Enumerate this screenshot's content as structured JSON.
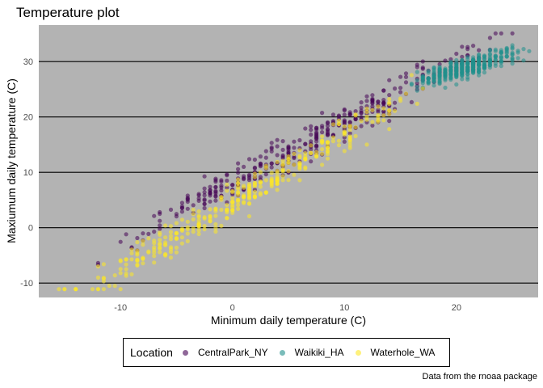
{
  "chart_data": {
    "type": "scatter",
    "title": "Temperature plot",
    "xlabel": "Minimum daily temperature (C)",
    "ylabel": "Maxiumum daily temperature (C)",
    "caption": "Data from the rnoaa package",
    "xlim": [
      -17.3,
      27.3
    ],
    "ylim": [
      -12.6,
      36.6
    ],
    "x_ticks": [
      -10,
      0,
      10,
      20
    ],
    "y_ticks": [
      -10,
      0,
      10,
      20,
      30
    ],
    "grid": "horizontal major lines only",
    "background": "#b3b3b3",
    "legend_position": "bottom",
    "legend_title": "Location",
    "series": [
      {
        "name": "CentralPark_NY",
        "color": "#440154",
        "cloud": {
          "x_range": [
            -12.5,
            25.5
          ],
          "slope": 1.11,
          "intercept": 8.0,
          "spread": 3.0,
          "count": 365
        }
      },
      {
        "name": "Waikiki_HA",
        "color": "#21908c",
        "cloud": {
          "x_range": [
            15.5,
            26.5
          ],
          "slope": 0.55,
          "intercept": 17.5,
          "spread": 1.6,
          "count": 365
        }
      },
      {
        "name": "Waterhole_WA",
        "color": "#fde725",
        "cloud": {
          "x_range": [
            -16.5,
            17.5
          ],
          "slope": 1.2,
          "intercept": 4.5,
          "spread": 3.0,
          "count": 365
        }
      }
    ]
  }
}
